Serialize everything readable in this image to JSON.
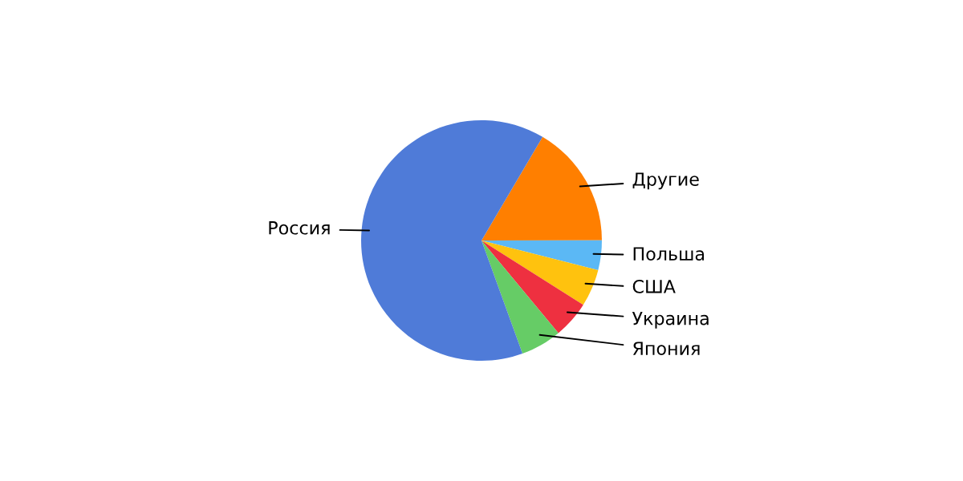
{
  "chart_data": {
    "type": "pie",
    "categories": [
      "Другие",
      "Польша",
      "США",
      "Украина",
      "Япония",
      "Россия"
    ],
    "values": [
      16.5,
      4,
      5,
      5,
      5.5,
      64
    ],
    "colors": [
      "#ff7f00",
      "#5bb8f5",
      "#ffc20e",
      "#ee3040",
      "#66cc66",
      "#4f7bd8"
    ]
  }
}
